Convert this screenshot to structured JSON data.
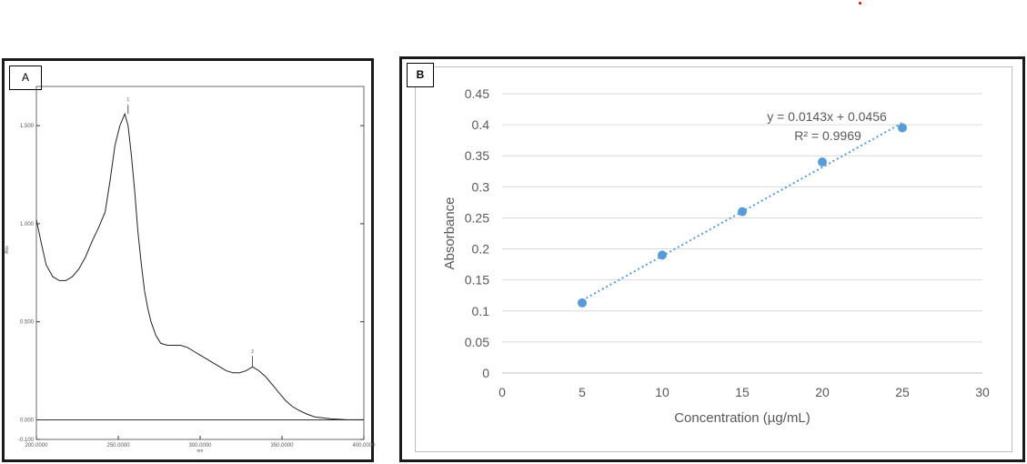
{
  "panels": {
    "a": {
      "label": "A"
    },
    "b": {
      "label": "B"
    }
  },
  "chart_data": [
    {
      "type": "line",
      "panel": "A",
      "xlim": [
        200,
        400
      ],
      "ylim": [
        -0.1,
        1.7
      ],
      "x_ticks": [
        "200.0000",
        "250.0000",
        "300.0000",
        "350.0000",
        "400.0000"
      ],
      "y_ticks": [
        "1.500",
        "1.000",
        "0.500",
        "0.000",
        "-0.100"
      ],
      "xlabel": "nm",
      "ylabel": "Abs",
      "peak_markers": [
        "1",
        "2"
      ],
      "series": [
        {
          "x": [
            200,
            203,
            206,
            210,
            214,
            218,
            222,
            226,
            230,
            234,
            238,
            242,
            245,
            248,
            251,
            254,
            256,
            258,
            260,
            262,
            264,
            266,
            268,
            270,
            273,
            276,
            280,
            284,
            288,
            292,
            296,
            300,
            304,
            308,
            312,
            316,
            320,
            324,
            328,
            332,
            336,
            340,
            344,
            348,
            352,
            356,
            360,
            365,
            370,
            380,
            390,
            400
          ],
          "y": [
            1.02,
            0.9,
            0.79,
            0.73,
            0.71,
            0.71,
            0.73,
            0.77,
            0.83,
            0.91,
            0.98,
            1.06,
            1.22,
            1.4,
            1.5,
            1.56,
            1.5,
            1.35,
            1.17,
            0.96,
            0.8,
            0.66,
            0.57,
            0.5,
            0.43,
            0.39,
            0.38,
            0.38,
            0.38,
            0.37,
            0.35,
            0.33,
            0.31,
            0.29,
            0.27,
            0.25,
            0.24,
            0.24,
            0.25,
            0.27,
            0.25,
            0.22,
            0.18,
            0.14,
            0.1,
            0.07,
            0.05,
            0.03,
            0.015,
            0.005,
            0.0,
            0.0
          ]
        }
      ]
    },
    {
      "type": "scatter",
      "panel": "B",
      "xlabel": "Concentration (µg/mL)",
      "ylabel": "Absorbance",
      "xlim": [
        0,
        30
      ],
      "ylim": [
        0,
        0.45
      ],
      "x_ticks": [
        "0",
        "5",
        "10",
        "15",
        "20",
        "25",
        "30"
      ],
      "y_ticks": [
        "0",
        "0.05",
        "0.1",
        "0.15",
        "0.2",
        "0.25",
        "0.3",
        "0.35",
        "0.4",
        "0.45"
      ],
      "grid": "horizontal",
      "series": [
        {
          "x": [
            5,
            10,
            15,
            20,
            25
          ],
          "y": [
            0.113,
            0.19,
            0.26,
            0.34,
            0.395
          ],
          "color": "#5b9bd5"
        }
      ],
      "trendline": {
        "type": "linear",
        "slope": 0.0143,
        "intercept": 0.0456,
        "from": 5,
        "to": 25
      },
      "equation": "y = 0.0143x + 0.0456",
      "r_squared": "R² = 0.9969"
    }
  ]
}
